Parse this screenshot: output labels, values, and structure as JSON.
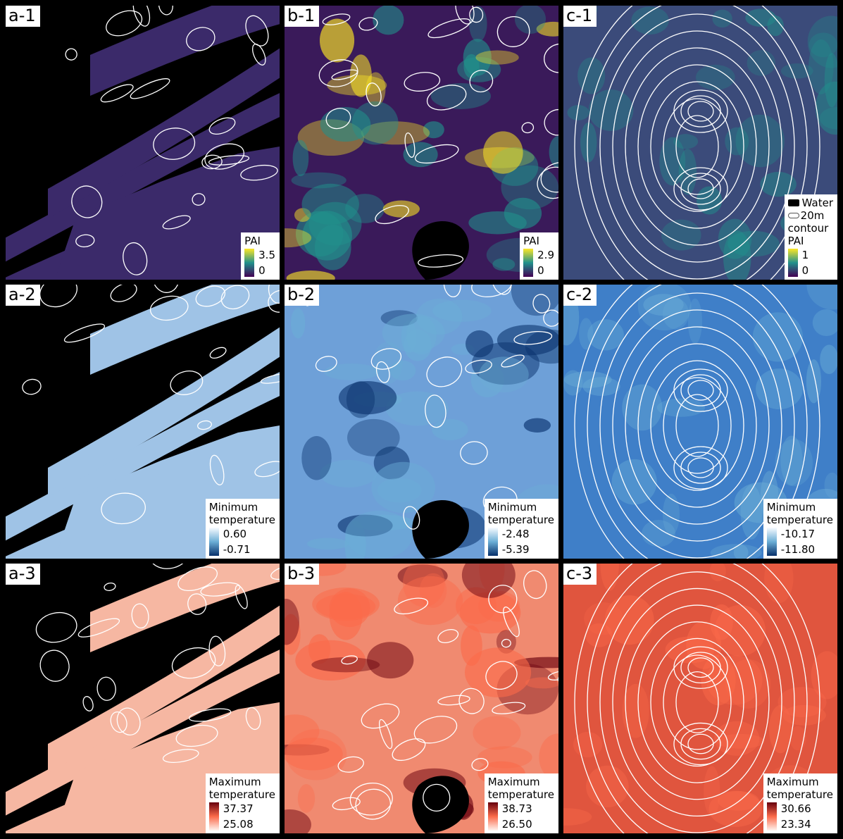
{
  "figure": {
    "panels": [
      {
        "id": "a-1",
        "label": "a-1",
        "legend": {
          "title": "PAI",
          "max": "3.5",
          "min": "0"
        },
        "colormap": "viridis",
        "colors": [
          "#440154",
          "#21918c",
          "#fde725"
        ],
        "background": "#000000"
      },
      {
        "id": "b-1",
        "label": "b-1",
        "legend": {
          "title": "PAI",
          "max": "2.9",
          "min": "0"
        },
        "colormap": "viridis",
        "colors": [
          "#440154",
          "#21918c",
          "#fde725"
        ],
        "background": "#3a1a5a"
      },
      {
        "id": "c-1",
        "label": "c-1",
        "legend": {
          "title": "PAI",
          "max": "1",
          "min": "0",
          "water_label": "Water",
          "contour_label_1": "20m",
          "contour_label_2": "contour"
        },
        "colormap": "viridis",
        "colors": [
          "#440154",
          "#21918c",
          "#fde725"
        ],
        "background": "#3b4b7a"
      },
      {
        "id": "a-2",
        "label": "a-2",
        "legend": {
          "title_1": "Minimum",
          "title_2": "temperature",
          "max": "0.60",
          "min": "-0.71"
        },
        "colormap": "blues",
        "colors": [
          "#f7fbff",
          "#6baed6",
          "#08306b"
        ],
        "background": "#000000"
      },
      {
        "id": "b-2",
        "label": "b-2",
        "legend": {
          "title_1": "Minimum",
          "title_2": "temperature",
          "max": "-2.48",
          "min": "-5.39"
        },
        "colormap": "blues",
        "colors": [
          "#f7fbff",
          "#6baed6",
          "#08306b"
        ],
        "background": "#6ea0d8"
      },
      {
        "id": "c-2",
        "label": "c-2",
        "legend": {
          "title_1": "Minimum",
          "title_2": "temperature",
          "max": "-10.17",
          "min": "-11.80"
        },
        "colormap": "blues",
        "colors": [
          "#f7fbff",
          "#6baed6",
          "#08306b"
        ],
        "background": "#3f7fc8"
      },
      {
        "id": "a-3",
        "label": "a-3",
        "legend": {
          "title_1": "Maximum",
          "title_2": "temperature",
          "max": "37.37",
          "min": "25.08"
        },
        "colormap": "reds",
        "colors": [
          "#fff5f0",
          "#fb6a4a",
          "#67000d"
        ],
        "background": "#000000"
      },
      {
        "id": "b-3",
        "label": "b-3",
        "legend": {
          "title_1": "Maximum",
          "title_2": "temperature",
          "max": "38.73",
          "min": "26.50"
        },
        "colormap": "reds",
        "colors": [
          "#fff5f0",
          "#fb6a4a",
          "#67000d"
        ],
        "background": "#f08a70"
      },
      {
        "id": "c-3",
        "label": "c-3",
        "legend": {
          "title_1": "Maximum",
          "title_2": "temperature",
          "max": "30.66",
          "min": "23.34"
        },
        "colormap": "reds",
        "colors": [
          "#fff5f0",
          "#fb6a4a",
          "#67000d"
        ],
        "background": "#e0553e"
      }
    ]
  }
}
